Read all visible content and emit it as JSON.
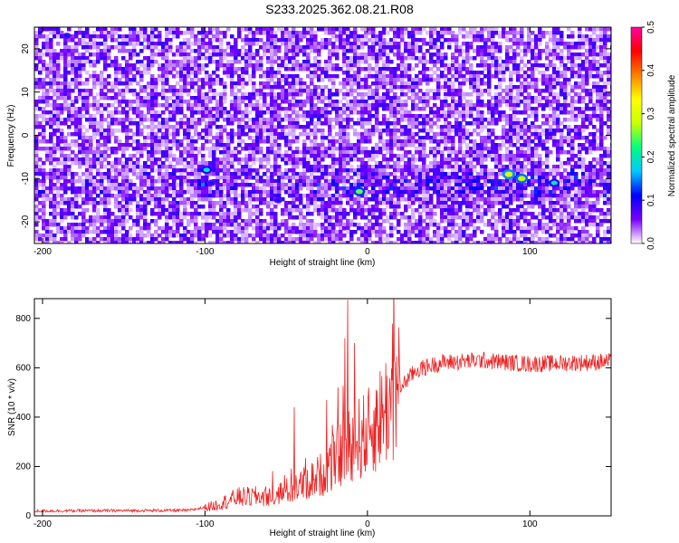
{
  "title": "S233.2025.362.08.21.R08",
  "chart_data": [
    {
      "type": "heatmap",
      "xlabel": "Height of straight line (km)",
      "ylabel": "Frequency (Hz)",
      "xlim": [
        -205,
        150
      ],
      "ylim": [
        -25,
        25
      ],
      "xticks": [
        -200,
        -100,
        0,
        100
      ],
      "yticks": [
        -20,
        -10,
        0,
        10,
        20
      ],
      "colorbar": {
        "label": "Normalized spectral amplitude",
        "range": [
          0,
          0.5
        ],
        "ticks": [
          "0.0",
          "0.1",
          "0.2",
          "0.3",
          "0.4",
          "0.5"
        ],
        "colors": [
          "#ffffff",
          "#7b00ff",
          "#0000ff",
          "#00c8ff",
          "#00ff80",
          "#c8ff00",
          "#ffff00",
          "#ff8000",
          "#ff0000",
          "#ff00a0"
        ]
      },
      "highlights": [
        {
          "x": -99,
          "y": -8,
          "amplitude": 0.2
        },
        {
          "x": -96,
          "y": -11,
          "amplitude": 0.12
        },
        {
          "x": -5,
          "y": -13,
          "amplitude": 0.25
        },
        {
          "x": 87,
          "y": -9,
          "amplitude": 0.3
        },
        {
          "x": 95,
          "y": -10,
          "amplitude": 0.28
        },
        {
          "x": 115,
          "y": -11,
          "amplitude": 0.2
        },
        {
          "x": -185,
          "y": 23,
          "amplitude": 0.12
        },
        {
          "x": -55,
          "y": -15,
          "amplitude": 0.12
        }
      ]
    },
    {
      "type": "line",
      "xlabel": "Height of straight line (km)",
      "ylabel": "SNR (10 * v/v)",
      "xlim": [
        -205,
        150
      ],
      "ylim": [
        0,
        880
      ],
      "xticks": [
        -200,
        -100,
        0,
        100
      ],
      "yticks": [
        0,
        200,
        400,
        600,
        800
      ],
      "color": "#ee2222",
      "profile": [
        {
          "x": -205,
          "y": 20
        },
        {
          "x": -110,
          "y": 22
        },
        {
          "x": -95,
          "y": 40
        },
        {
          "x": -80,
          "y": 75
        },
        {
          "x": -60,
          "y": 80
        },
        {
          "x": -45,
          "y": 110
        },
        {
          "x": -30,
          "y": 160
        },
        {
          "x": -20,
          "y": 220
        },
        {
          "x": -10,
          "y": 300
        },
        {
          "x": 0,
          "y": 330
        },
        {
          "x": 10,
          "y": 420
        },
        {
          "x": 20,
          "y": 520
        },
        {
          "x": 30,
          "y": 590
        },
        {
          "x": 45,
          "y": 620
        },
        {
          "x": 70,
          "y": 630
        },
        {
          "x": 100,
          "y": 615
        },
        {
          "x": 150,
          "y": 625
        }
      ],
      "spikes": [
        {
          "x": -12,
          "y": 875
        },
        {
          "x": -14,
          "y": 720
        },
        {
          "x": -8,
          "y": 700
        },
        {
          "x": -45,
          "y": 440
        },
        {
          "x": -25,
          "y": 470
        },
        {
          "x": -18,
          "y": 520
        }
      ]
    }
  ]
}
